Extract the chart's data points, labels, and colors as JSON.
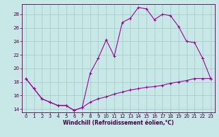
{
  "xlabel": "Windchill (Refroidissement éolien,°C)",
  "bg_color": "#c8e8e8",
  "grid_color": "#aacccc",
  "line_color": "#990099",
  "xlim": [
    -0.5,
    23.5
  ],
  "ylim": [
    13.5,
    29.5
  ],
  "xticks": [
    0,
    1,
    2,
    3,
    4,
    5,
    6,
    7,
    8,
    9,
    10,
    11,
    12,
    13,
    14,
    15,
    16,
    17,
    18,
    19,
    20,
    21,
    22,
    23
  ],
  "yticks": [
    14,
    16,
    18,
    20,
    22,
    24,
    26,
    28
  ],
  "upper_x": [
    0,
    1,
    2,
    3,
    4,
    5,
    6,
    7,
    8,
    9,
    10,
    11,
    12,
    13,
    14,
    15,
    16,
    17,
    18,
    19,
    20,
    21,
    22,
    23
  ],
  "upper_y": [
    18.5,
    17.0,
    15.5,
    15.0,
    14.5,
    14.5,
    13.8,
    14.2,
    19.3,
    21.5,
    24.2,
    21.8,
    26.8,
    27.4,
    29.0,
    28.8,
    27.2,
    28.0,
    27.8,
    26.2,
    24.0,
    23.8,
    21.5,
    18.5
  ],
  "lower_x": [
    0,
    1,
    2,
    3,
    4,
    5,
    6,
    7,
    8,
    9,
    10,
    11,
    12,
    13,
    14,
    15,
    16,
    17,
    18,
    19,
    20,
    21,
    22,
    23
  ],
  "lower_y": [
    18.5,
    17.0,
    15.5,
    15.0,
    14.5,
    14.5,
    13.8,
    14.2,
    15.0,
    15.5,
    15.8,
    16.2,
    16.5,
    16.8,
    17.0,
    17.2,
    17.3,
    17.5,
    17.8,
    18.0,
    18.2,
    18.5,
    18.5,
    18.5
  ],
  "xlabel_fontsize": 5.5,
  "tick_fontsize": 5.0,
  "linewidth": 0.8,
  "markersize": 3.0
}
